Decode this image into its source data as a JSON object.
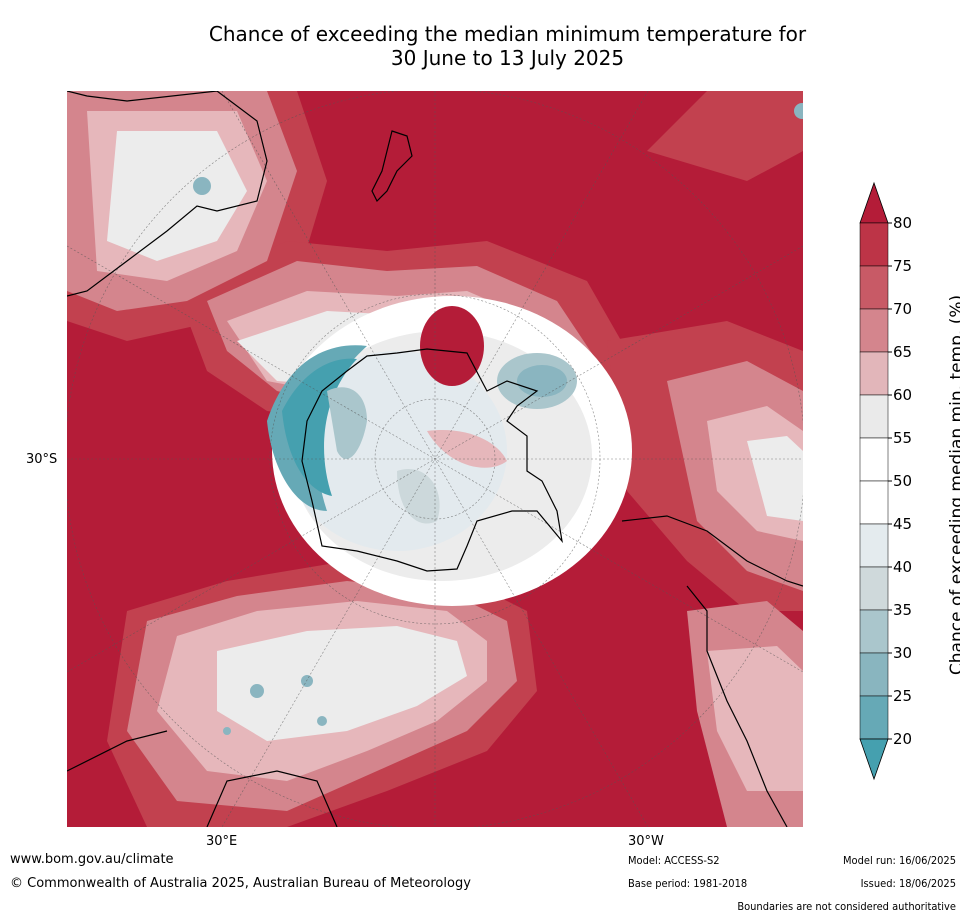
{
  "title_line1": "Chance of exceeding the median minimum temperature for",
  "title_line2": "30 June to 13 July 2025",
  "map": {
    "lat_label_left": "30°S",
    "lon_label_bottom_left": "30°E",
    "lon_label_bottom_right": "30°W",
    "projection": "south-polar-stereographic",
    "colors": {
      "deep_red": "#b41c38",
      "red2": "#c2414f",
      "red3": "#cc6672",
      "red4": "#d98b94",
      "pink": "#e6b7bb",
      "light_grey": "#ececec",
      "white": "#ffffff",
      "pale_blue": "#e3eaee",
      "grey_blue": "#ccd8db",
      "blue1": "#aac6cc",
      "blue2": "#8ab5c0",
      "blue3": "#66a9b6",
      "teal": "#45a0af"
    }
  },
  "colorbar": {
    "label": "Chance of exceeding median min. temp. (%)",
    "ticks": [
      "80",
      "75",
      "70",
      "65",
      "60",
      "55",
      "50",
      "45",
      "40",
      "35",
      "30",
      "25",
      "20"
    ],
    "bands": [
      "#b41c38",
      "#bd3447",
      "#c85a66",
      "#d4858d",
      "#e2b6ba",
      "#eaeaea",
      "#ffffff",
      "#ffffff",
      "#e4ebee",
      "#cfd9db",
      "#aac6cc",
      "#89b5bf",
      "#66a9b6",
      "#45a0af"
    ]
  },
  "footer": {
    "website": "www.bom.gov.au/climate",
    "copyright": "© Commonwealth of Australia 2025, Australian Bureau of Meteorology",
    "model": "Model: ACCESS-S2",
    "base_period": "Base period: 1981-2018",
    "model_run": "Model run: 16/06/2025",
    "issued": "Issued: 18/06/2025",
    "disclaimer": "Boundaries are not considered authoritative"
  }
}
